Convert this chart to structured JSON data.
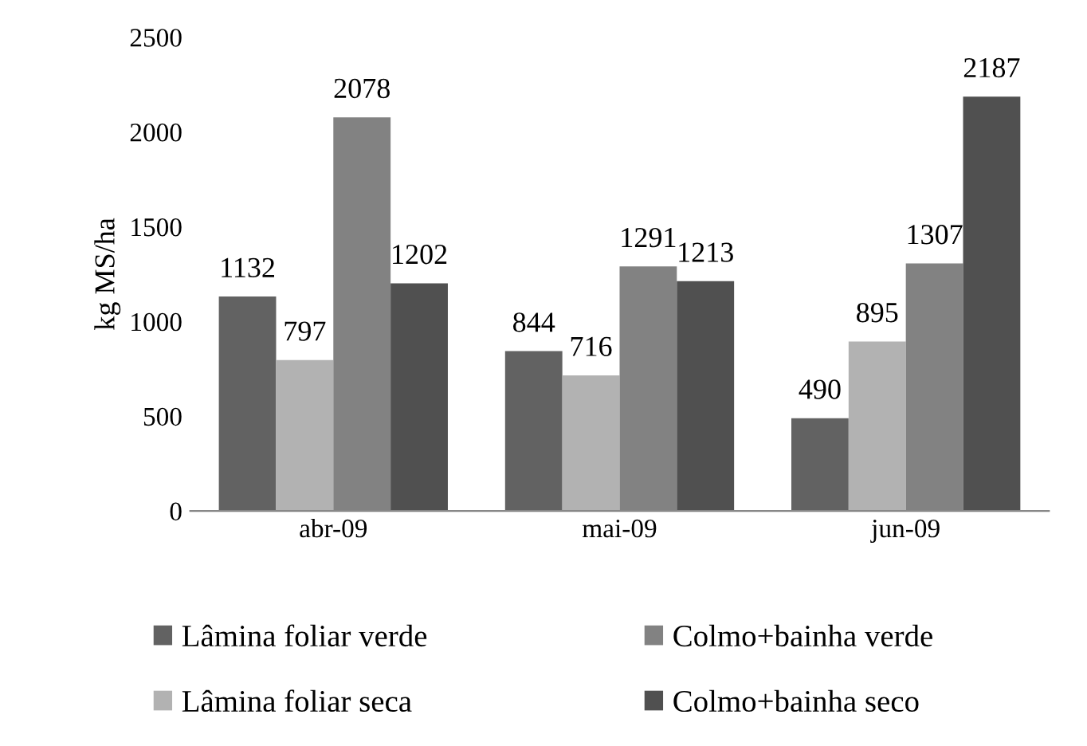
{
  "chart_data": {
    "type": "bar",
    "ylabel": "kg MS/ha",
    "categories": [
      "abr-09",
      "mai-09",
      "jun-09"
    ],
    "series": [
      {
        "name": "Lâmina foliar verde",
        "color": "#626262",
        "values": [
          1132,
          844,
          490
        ]
      },
      {
        "name": "Lâmina foliar seca",
        "color": "#b2b2b2",
        "values": [
          797,
          716,
          895
        ]
      },
      {
        "name": "Colmo+bainha verde",
        "color": "#828282",
        "values": [
          2078,
          1291,
          1307
        ]
      },
      {
        "name": "Colmo+bainha seco",
        "color": "#505050",
        "values": [
          1202,
          1213,
          2187
        ]
      }
    ],
    "ylim": [
      0,
      2500
    ],
    "yticks": [
      0,
      500,
      1000,
      1500,
      2000,
      2500
    ],
    "data_labels": true,
    "legend": "bottom",
    "grid": false
  }
}
